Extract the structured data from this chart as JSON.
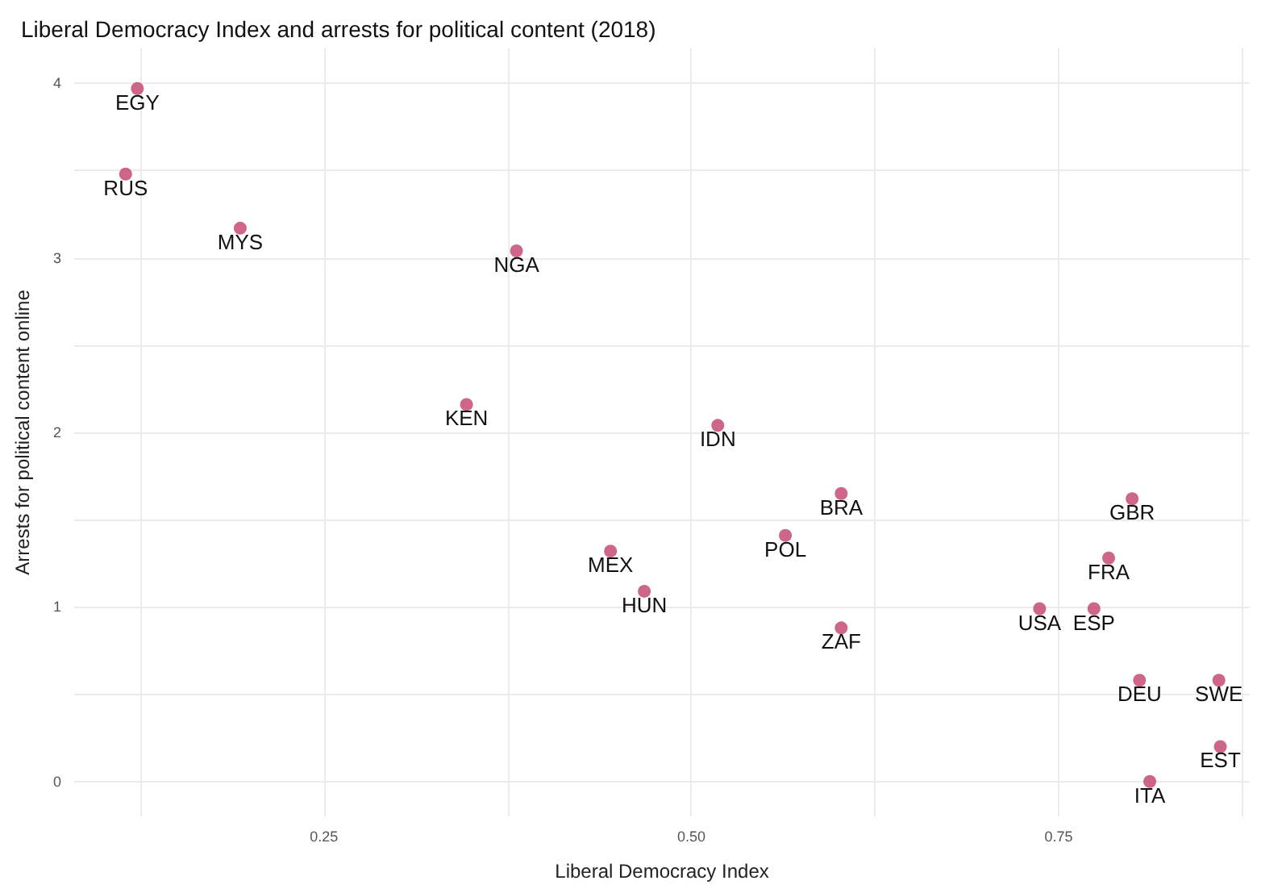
{
  "chart_data": {
    "type": "scatter",
    "title": "Liberal Democracy Index and arrests for political content (2018)",
    "xlabel": "Liberal Democracy Index",
    "ylabel": "Arrests for political content online",
    "x": [
      0.123,
      0.115,
      0.193,
      0.381,
      0.347,
      0.518,
      0.602,
      0.564,
      0.445,
      0.468,
      0.602,
      0.737,
      0.774,
      0.8,
      0.784,
      0.805,
      0.859,
      0.86,
      0.812
    ],
    "values": [
      3.97,
      3.48,
      3.17,
      3.04,
      2.16,
      2.04,
      1.65,
      1.41,
      1.32,
      1.09,
      0.88,
      0.99,
      0.99,
      1.62,
      1.28,
      0.58,
      0.58,
      0.2,
      0.0
    ],
    "color": "#c2406b",
    "marker": "circle",
    "grid": true,
    "xlim": [
      0.08,
      0.88
    ],
    "ylim": [
      -0.2,
      4.2
    ],
    "xticks": [
      {
        "value": 0.125,
        "label": null
      },
      {
        "value": 0.25,
        "label": "0.25"
      },
      {
        "value": 0.375,
        "label": null
      },
      {
        "value": 0.5,
        "label": "0.50"
      },
      {
        "value": 0.625,
        "label": null
      },
      {
        "value": 0.75,
        "label": "0.75"
      },
      {
        "value": 0.875,
        "label": null
      }
    ],
    "yticks": [
      0,
      {
        "value": 0.5,
        "label": null
      },
      1,
      {
        "value": 1.5,
        "label": null
      },
      2,
      {
        "value": 2.5,
        "label": null
      },
      3,
      {
        "value": 3.5,
        "label": null
      },
      4
    ],
    "annotations": [
      {
        "text": "EGY",
        "x": 0.123,
        "y": 3.97
      },
      {
        "text": "RUS",
        "x": 0.115,
        "y": 3.48
      },
      {
        "text": "MYS",
        "x": 0.193,
        "y": 3.17
      },
      {
        "text": "NGA",
        "x": 0.381,
        "y": 3.04
      },
      {
        "text": "KEN",
        "x": 0.347,
        "y": 2.16
      },
      {
        "text": "IDN",
        "x": 0.518,
        "y": 2.04
      },
      {
        "text": "BRA",
        "x": 0.602,
        "y": 1.65
      },
      {
        "text": "POL",
        "x": 0.564,
        "y": 1.41
      },
      {
        "text": "MEX",
        "x": 0.445,
        "y": 1.32
      },
      {
        "text": "HUN",
        "x": 0.468,
        "y": 1.09
      },
      {
        "text": "ZAF",
        "x": 0.602,
        "y": 0.88
      },
      {
        "text": "USA",
        "x": 0.737,
        "y": 0.99
      },
      {
        "text": "ESP",
        "x": 0.774,
        "y": 0.99
      },
      {
        "text": "GBR",
        "x": 0.8,
        "y": 1.62
      },
      {
        "text": "FRA",
        "x": 0.784,
        "y": 1.28
      },
      {
        "text": "DEU",
        "x": 0.805,
        "y": 0.58
      },
      {
        "text": "SWE",
        "x": 0.859,
        "y": 0.58
      },
      {
        "text": "EST",
        "x": 0.86,
        "y": 0.2
      },
      {
        "text": "ITA",
        "x": 0.812,
        "y": 0.0
      }
    ]
  }
}
